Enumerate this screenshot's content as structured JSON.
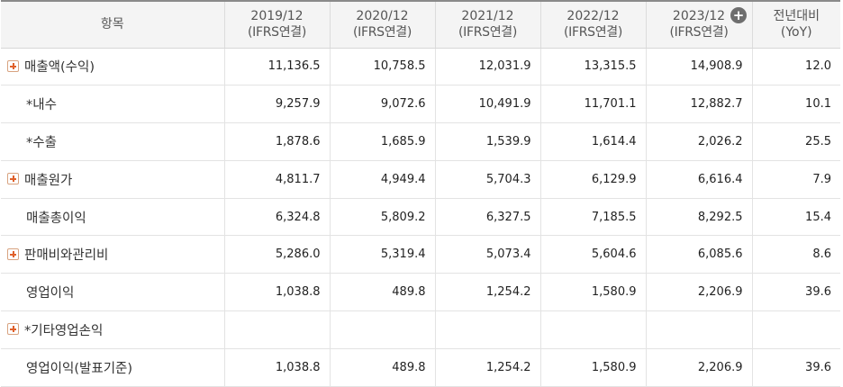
{
  "header": {
    "item_label": "항목",
    "columns": [
      {
        "period": "2019/12",
        "basis": "(IFRS연결)"
      },
      {
        "period": "2020/12",
        "basis": "(IFRS연결)"
      },
      {
        "period": "2021/12",
        "basis": "(IFRS연결)"
      },
      {
        "period": "2022/12",
        "basis": "(IFRS연결)"
      },
      {
        "period": "2023/12",
        "basis": "(IFRS연결)"
      }
    ],
    "yoy_line1": "전년대비",
    "yoy_line2": "(YoY)",
    "expand_icon": "circle-plus-icon"
  },
  "rows": [
    {
      "label": "매출액(수익)",
      "expandable": true,
      "values": [
        "11,136.5",
        "10,758.5",
        "12,031.9",
        "13,315.5",
        "14,908.9"
      ],
      "yoy": "12.0"
    },
    {
      "label": "*내수",
      "expandable": false,
      "values": [
        "9,257.9",
        "9,072.6",
        "10,491.9",
        "11,701.1",
        "12,882.7"
      ],
      "yoy": "10.1"
    },
    {
      "label": "*수출",
      "expandable": false,
      "values": [
        "1,878.6",
        "1,685.9",
        "1,539.9",
        "1,614.4",
        "2,026.2"
      ],
      "yoy": "25.5"
    },
    {
      "label": "매출원가",
      "expandable": true,
      "values": [
        "4,811.7",
        "4,949.4",
        "5,704.3",
        "6,129.9",
        "6,616.4"
      ],
      "yoy": "7.9"
    },
    {
      "label": "매출총이익",
      "expandable": false,
      "values": [
        "6,324.8",
        "5,809.2",
        "6,327.5",
        "7,185.5",
        "8,292.5"
      ],
      "yoy": "15.4"
    },
    {
      "label": "판매비와관리비",
      "expandable": true,
      "values": [
        "5,286.0",
        "5,319.4",
        "5,073.4",
        "5,604.6",
        "6,085.6"
      ],
      "yoy": "8.6"
    },
    {
      "label": "영업이익",
      "expandable": false,
      "values": [
        "1,038.8",
        "489.8",
        "1,254.2",
        "1,580.9",
        "2,206.9"
      ],
      "yoy": "39.6"
    },
    {
      "label": "*기타영업손익",
      "expandable": true,
      "values": [
        "",
        "",
        "",
        "",
        ""
      ],
      "yoy": ""
    },
    {
      "label": "영업이익(발표기준)",
      "expandable": false,
      "values": [
        "1,038.8",
        "489.8",
        "1,254.2",
        "1,580.9",
        "2,206.9"
      ],
      "yoy": "39.6"
    }
  ],
  "colors": {
    "header_bg": "#f4f4f4",
    "plus_icon": "#e0602a",
    "circle_plus_bg": "#6e6e6e"
  }
}
